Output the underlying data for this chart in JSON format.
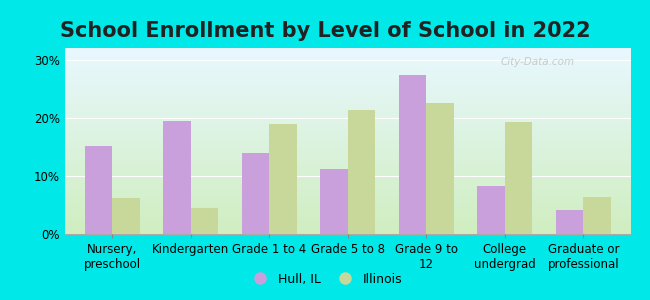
{
  "title": "School Enrollment by Level of School in 2022",
  "categories": [
    "Nursery,\npreschool",
    "Kindergarten",
    "Grade 1 to 4",
    "Grade 5 to 8",
    "Grade 9 to\n12",
    "College\nundergrad",
    "Graduate or\nprofessional"
  ],
  "hull_values": [
    15.2,
    19.5,
    14.0,
    11.2,
    27.3,
    8.2,
    4.1
  ],
  "illinois_values": [
    6.2,
    4.5,
    19.0,
    21.3,
    22.5,
    19.2,
    6.3
  ],
  "hull_color": "#c9a0dc",
  "illinois_color": "#c8d89a",
  "background_color": "#00e8e8",
  "grad_top": "#e8f8ff",
  "grad_bottom": "#d0eec0",
  "ylabel_ticks": [
    0,
    10,
    20,
    30
  ],
  "ylim": [
    0,
    32
  ],
  "legend_hull": "Hull, IL",
  "legend_illinois": "Illinois",
  "watermark": "City-Data.com",
  "title_fontsize": 15,
  "tick_fontsize": 8.5,
  "legend_fontsize": 9,
  "bar_width": 0.35
}
